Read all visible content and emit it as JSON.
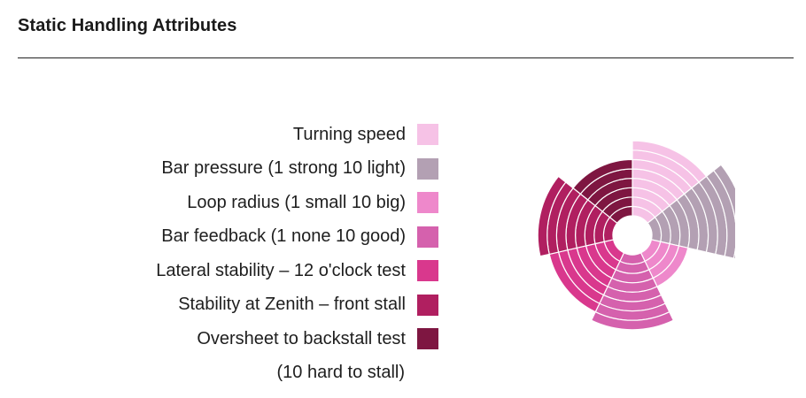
{
  "header": {
    "title": "Static Handling Attributes"
  },
  "legend_note": "(10 hard to stall)",
  "chart_data": {
    "type": "polar-area",
    "title": "Static Handling Attributes",
    "ring_scale_max": 10,
    "categories": [
      "Turning speed",
      "Bar pressure (1 strong 10 light)",
      "Loop radius (1 small 10 big)",
      "Bar feedback (1 none 10 good)",
      "Lateral stability – 12 o'clock test",
      "Stability at Zenith – front stall",
      "Oversheet to backstall test"
    ],
    "values": [
      8,
      10,
      4,
      8,
      7,
      8,
      6
    ],
    "colors": [
      "#f6c2e6",
      "#b3a0b3",
      "#ee88cb",
      "#d561ad",
      "#d9388d",
      "#b01f60",
      "#7e1641"
    ]
  }
}
